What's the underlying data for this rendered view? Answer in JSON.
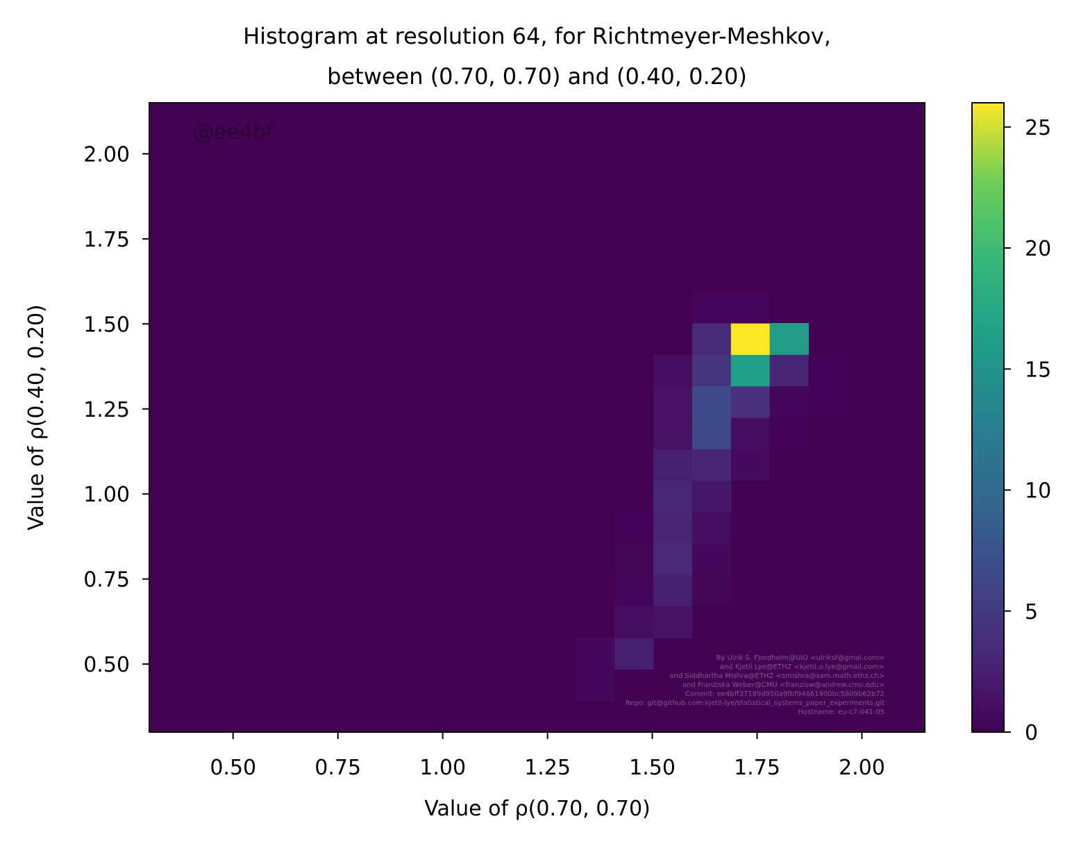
{
  "chart_data": {
    "type": "heatmap",
    "title": [
      "Histogram at resolution 64, for Richtmeyer-Meshkov,",
      "between (0.70, 0.70) and (0.40, 0.20)"
    ],
    "xlabel": "Value of ρ(0.70, 0.70)",
    "ylabel": "Value of ρ(0.40, 0.20)",
    "xlim": [
      0.3,
      2.15
    ],
    "ylim": [
      0.3,
      2.15
    ],
    "xticks": [
      "0.50",
      "0.75",
      "1.00",
      "1.25",
      "1.50",
      "1.75",
      "2.00"
    ],
    "yticks": [
      "0.50",
      "0.75",
      "1.00",
      "1.25",
      "1.50",
      "1.75",
      "2.00"
    ],
    "colorbar": {
      "ticks": [
        "0",
        "5",
        "10",
        "15",
        "20",
        "25"
      ],
      "vmin": 0,
      "vmax": 26,
      "colormap": "viridis"
    },
    "bin_width_x": 0.0925,
    "bin_width_y": 0.0925,
    "bins": [
      {
        "x": 1.3175,
        "y": 0.3925,
        "count": 0.6
      },
      {
        "x": 1.3175,
        "y": 0.485,
        "count": 0.6
      },
      {
        "x": 1.41,
        "y": 0.485,
        "count": 2.5
      },
      {
        "x": 1.41,
        "y": 0.5775,
        "count": 1.0
      },
      {
        "x": 1.41,
        "y": 0.67,
        "count": 0.4
      },
      {
        "x": 1.41,
        "y": 0.7625,
        "count": 0.3
      },
      {
        "x": 1.41,
        "y": 0.855,
        "count": 0.2
      },
      {
        "x": 1.5025,
        "y": 0.5775,
        "count": 1.4
      },
      {
        "x": 1.5025,
        "y": 0.67,
        "count": 2.5
      },
      {
        "x": 1.5025,
        "y": 0.7625,
        "count": 3.3
      },
      {
        "x": 1.5025,
        "y": 0.855,
        "count": 3.0
      },
      {
        "x": 1.5025,
        "y": 0.9475,
        "count": 3.2
      },
      {
        "x": 1.5025,
        "y": 1.04,
        "count": 2.5
      },
      {
        "x": 1.5025,
        "y": 1.1325,
        "count": 1.3
      },
      {
        "x": 1.5025,
        "y": 1.225,
        "count": 1.3
      },
      {
        "x": 1.5025,
        "y": 1.3175,
        "count": 1.0
      },
      {
        "x": 1.595,
        "y": 0.67,
        "count": 0.3
      },
      {
        "x": 1.595,
        "y": 0.7625,
        "count": 0.6
      },
      {
        "x": 1.595,
        "y": 0.855,
        "count": 1.0
      },
      {
        "x": 1.595,
        "y": 0.9475,
        "count": 1.8
      },
      {
        "x": 1.595,
        "y": 1.04,
        "count": 3.0
      },
      {
        "x": 1.595,
        "y": 1.1325,
        "count": 6.5
      },
      {
        "x": 1.595,
        "y": 1.225,
        "count": 6.5
      },
      {
        "x": 1.595,
        "y": 1.3175,
        "count": 4.5
      },
      {
        "x": 1.595,
        "y": 1.41,
        "count": 3.5
      },
      {
        "x": 1.595,
        "y": 1.5025,
        "count": 0.4
      },
      {
        "x": 1.6875,
        "y": 1.04,
        "count": 0.9
      },
      {
        "x": 1.6875,
        "y": 1.1325,
        "count": 1.0
      },
      {
        "x": 1.6875,
        "y": 1.225,
        "count": 4.0
      },
      {
        "x": 1.6875,
        "y": 1.3175,
        "count": 16.5
      },
      {
        "x": 1.6875,
        "y": 1.41,
        "count": 26.0
      },
      {
        "x": 1.6875,
        "y": 1.5025,
        "count": 0.4
      },
      {
        "x": 1.78,
        "y": 1.1325,
        "count": 0.2
      },
      {
        "x": 1.78,
        "y": 1.225,
        "count": 0.5
      },
      {
        "x": 1.78,
        "y": 1.3175,
        "count": 3.0
      },
      {
        "x": 1.78,
        "y": 1.41,
        "count": 16.0
      },
      {
        "x": 1.8725,
        "y": 1.225,
        "count": 0.2
      },
      {
        "x": 1.8725,
        "y": 1.3175,
        "count": 0.2
      }
    ],
    "annotations": {
      "tag": "@ee4bf",
      "credits": [
        "By Ulrik S. Fjordholm@UiO <ulriksf@gmal.com>",
        "and Kjetil Lye@ETHZ <kjetil.o.lye@gmail.com>",
        "and Siddhartha Mishra@ETHZ <smishra@sam.math.ethz.ch>",
        "and Franziska Weber@CMU <franzisw@andrew.cmu.edu>",
        "Commit: ee4bff37189d950a9fbf94661900bc5809b62b72",
        "Repo: git@github.com:kjetil-lye/statistical_systems_paper_experiments.git",
        "Hostname: eu-c7-041-05"
      ]
    }
  }
}
